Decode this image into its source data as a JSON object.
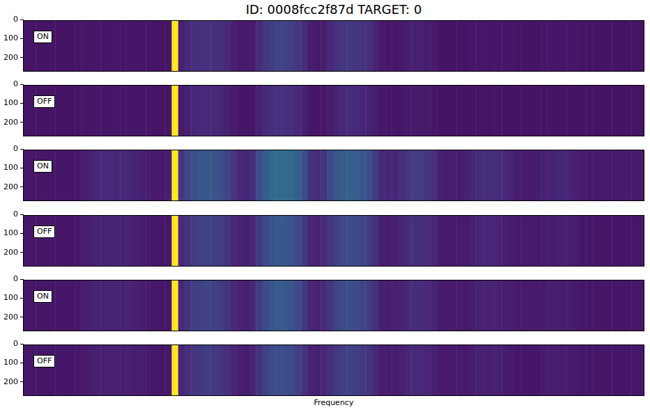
{
  "title": "ID: 0008fcc2f87d  TARGET: 0",
  "x_label": "Frequency",
  "chart_data": [
    {
      "type": "heatmap",
      "annotation": "ON",
      "ylim": [
        0,
        273
      ],
      "yticks": [
        0,
        100,
        200
      ],
      "tick_labels": "y",
      "cells": [
        [
          0.06,
          0.06,
          0.06,
          0.06,
          0.06,
          0.06,
          0.06,
          0.06,
          0.06,
          0.07,
          0.07,
          0.07,
          0.07,
          0.07,
          0.07,
          0.07,
          0.07,
          0.07,
          0.07,
          0.07,
          0.06,
          0.06,
          0.06,
          1.0,
          0.1,
          0.13,
          0.15,
          0.16,
          0.16,
          0.16,
          0.15,
          0.13,
          0.1,
          0.08,
          0.08,
          0.09,
          0.14,
          0.18,
          0.21,
          0.23,
          0.23,
          0.21,
          0.18,
          0.14,
          0.09,
          0.08,
          0.09,
          0.13,
          0.16,
          0.18,
          0.19,
          0.18,
          0.17,
          0.15,
          0.11,
          0.08,
          0.07,
          0.07,
          0.08,
          0.09,
          0.1,
          0.1,
          0.09,
          0.08,
          0.06,
          0.06,
          0.06,
          0.06,
          0.06,
          0.07,
          0.07,
          0.07,
          0.07,
          0.07,
          0.07,
          0.07,
          0.06,
          0.06,
          0.06,
          0.06,
          0.07,
          0.07,
          0.07,
          0.07,
          0.07,
          0.07,
          0.06,
          0.06,
          0.06,
          0.06,
          0.06,
          0.06,
          0.06,
          0.06,
          0.06,
          0.06
        ]
      ]
    },
    {
      "type": "heatmap",
      "annotation": "OFF",
      "ylim": [
        0,
        273
      ],
      "yticks": [
        0,
        100,
        200
      ],
      "tick_labels": "y",
      "cells": [
        [
          0.06,
          0.06,
          0.06,
          0.06,
          0.06,
          0.06,
          0.06,
          0.06,
          0.06,
          0.07,
          0.07,
          0.07,
          0.07,
          0.07,
          0.07,
          0.07,
          0.07,
          0.07,
          0.07,
          0.07,
          0.06,
          0.06,
          0.06,
          1.0,
          0.08,
          0.1,
          0.12,
          0.13,
          0.13,
          0.13,
          0.12,
          0.1,
          0.08,
          0.07,
          0.07,
          0.07,
          0.1,
          0.13,
          0.15,
          0.16,
          0.16,
          0.15,
          0.13,
          0.1,
          0.07,
          0.07,
          0.07,
          0.09,
          0.11,
          0.13,
          0.14,
          0.13,
          0.12,
          0.11,
          0.09,
          0.07,
          0.07,
          0.07,
          0.07,
          0.08,
          0.08,
          0.08,
          0.08,
          0.07,
          0.06,
          0.06,
          0.06,
          0.06,
          0.06,
          0.06,
          0.06,
          0.06,
          0.06,
          0.06,
          0.06,
          0.06,
          0.06,
          0.06,
          0.06,
          0.06,
          0.06,
          0.06,
          0.06,
          0.06,
          0.06,
          0.06,
          0.06,
          0.06,
          0.06,
          0.06,
          0.06,
          0.06,
          0.06,
          0.06,
          0.06,
          0.06
        ]
      ]
    },
    {
      "type": "heatmap",
      "annotation": "ON",
      "ylim": [
        0,
        273
      ],
      "yticks": [
        0,
        100,
        200
      ],
      "tick_labels": "y",
      "cells": [
        [
          0.07,
          0.07,
          0.07,
          0.07,
          0.07,
          0.07,
          0.07,
          0.07,
          0.07,
          0.09,
          0.11,
          0.12,
          0.13,
          0.13,
          0.12,
          0.13,
          0.12,
          0.11,
          0.1,
          0.09,
          0.08,
          0.08,
          0.09,
          1.0,
          0.18,
          0.24,
          0.28,
          0.3,
          0.31,
          0.3,
          0.28,
          0.24,
          0.18,
          0.13,
          0.12,
          0.15,
          0.26,
          0.33,
          0.37,
          0.39,
          0.4,
          0.38,
          0.34,
          0.27,
          0.16,
          0.14,
          0.17,
          0.25,
          0.3,
          0.33,
          0.34,
          0.33,
          0.31,
          0.27,
          0.2,
          0.13,
          0.12,
          0.12,
          0.15,
          0.18,
          0.2,
          0.2,
          0.18,
          0.15,
          0.1,
          0.09,
          0.09,
          0.09,
          0.1,
          0.12,
          0.14,
          0.15,
          0.15,
          0.14,
          0.13,
          0.11,
          0.09,
          0.08,
          0.08,
          0.09,
          0.1,
          0.11,
          0.12,
          0.12,
          0.11,
          0.1,
          0.08,
          0.08,
          0.08,
          0.08,
          0.08,
          0.08,
          0.08,
          0.08,
          0.08,
          0.08
        ]
      ]
    },
    {
      "type": "heatmap",
      "annotation": "OFF",
      "ylim": [
        0,
        273
      ],
      "yticks": [
        0,
        100,
        200
      ],
      "tick_labels": "y",
      "cells": [
        [
          0.07,
          0.07,
          0.07,
          0.07,
          0.07,
          0.07,
          0.07,
          0.07,
          0.07,
          0.09,
          0.1,
          0.11,
          0.11,
          0.11,
          0.11,
          0.11,
          0.11,
          0.1,
          0.09,
          0.08,
          0.07,
          0.07,
          0.07,
          1.0,
          0.13,
          0.17,
          0.2,
          0.22,
          0.22,
          0.21,
          0.2,
          0.17,
          0.13,
          0.11,
          0.1,
          0.12,
          0.19,
          0.25,
          0.29,
          0.31,
          0.31,
          0.29,
          0.25,
          0.19,
          0.12,
          0.11,
          0.13,
          0.18,
          0.22,
          0.25,
          0.26,
          0.25,
          0.23,
          0.2,
          0.15,
          0.1,
          0.09,
          0.1,
          0.12,
          0.14,
          0.15,
          0.15,
          0.14,
          0.12,
          0.08,
          0.08,
          0.08,
          0.08,
          0.08,
          0.1,
          0.11,
          0.12,
          0.12,
          0.11,
          0.1,
          0.09,
          0.08,
          0.08,
          0.08,
          0.08,
          0.09,
          0.09,
          0.1,
          0.1,
          0.09,
          0.09,
          0.07,
          0.07,
          0.07,
          0.07,
          0.07,
          0.07,
          0.07,
          0.07,
          0.07,
          0.07
        ]
      ]
    },
    {
      "type": "heatmap",
      "annotation": "ON",
      "ylim": [
        0,
        273
      ],
      "yticks": [
        0,
        100,
        200
      ],
      "tick_labels": "y",
      "cells": [
        [
          0.07,
          0.07,
          0.07,
          0.07,
          0.07,
          0.07,
          0.07,
          0.07,
          0.07,
          0.09,
          0.1,
          0.11,
          0.11,
          0.11,
          0.11,
          0.11,
          0.11,
          0.1,
          0.09,
          0.08,
          0.07,
          0.07,
          0.07,
          1.0,
          0.13,
          0.17,
          0.21,
          0.22,
          0.23,
          0.22,
          0.2,
          0.17,
          0.13,
          0.11,
          0.1,
          0.12,
          0.2,
          0.26,
          0.3,
          0.32,
          0.31,
          0.29,
          0.25,
          0.19,
          0.12,
          0.11,
          0.13,
          0.18,
          0.23,
          0.26,
          0.27,
          0.26,
          0.23,
          0.2,
          0.15,
          0.1,
          0.09,
          0.1,
          0.11,
          0.13,
          0.14,
          0.14,
          0.13,
          0.11,
          0.08,
          0.08,
          0.08,
          0.08,
          0.08,
          0.09,
          0.1,
          0.11,
          0.11,
          0.1,
          0.09,
          0.09,
          0.08,
          0.08,
          0.08,
          0.08,
          0.08,
          0.09,
          0.09,
          0.09,
          0.09,
          0.08,
          0.07,
          0.07,
          0.07,
          0.07,
          0.07,
          0.07,
          0.07,
          0.07,
          0.07,
          0.07
        ]
      ]
    },
    {
      "type": "heatmap",
      "annotation": "OFF",
      "ylim": [
        0,
        273
      ],
      "yticks": [
        0,
        100,
        200
      ],
      "tick_labels": "y",
      "cells": [
        [
          0.07,
          0.07,
          0.07,
          0.07,
          0.07,
          0.07,
          0.07,
          0.07,
          0.07,
          0.08,
          0.09,
          0.1,
          0.1,
          0.1,
          0.1,
          0.1,
          0.1,
          0.09,
          0.09,
          0.08,
          0.07,
          0.07,
          0.07,
          1.0,
          0.12,
          0.15,
          0.18,
          0.19,
          0.2,
          0.19,
          0.18,
          0.15,
          0.12,
          0.1,
          0.09,
          0.11,
          0.17,
          0.22,
          0.26,
          0.27,
          0.27,
          0.25,
          0.22,
          0.17,
          0.11,
          0.1,
          0.12,
          0.15,
          0.19,
          0.21,
          0.22,
          0.21,
          0.19,
          0.17,
          0.13,
          0.09,
          0.09,
          0.09,
          0.1,
          0.12,
          0.13,
          0.13,
          0.12,
          0.1,
          0.08,
          0.08,
          0.08,
          0.08,
          0.08,
          0.09,
          0.1,
          0.1,
          0.1,
          0.1,
          0.09,
          0.08,
          0.07,
          0.07,
          0.07,
          0.07,
          0.08,
          0.09,
          0.09,
          0.09,
          0.08,
          0.08,
          0.07,
          0.07,
          0.07,
          0.07,
          0.07,
          0.07,
          0.07,
          0.07,
          0.07,
          0.07
        ]
      ]
    }
  ]
}
